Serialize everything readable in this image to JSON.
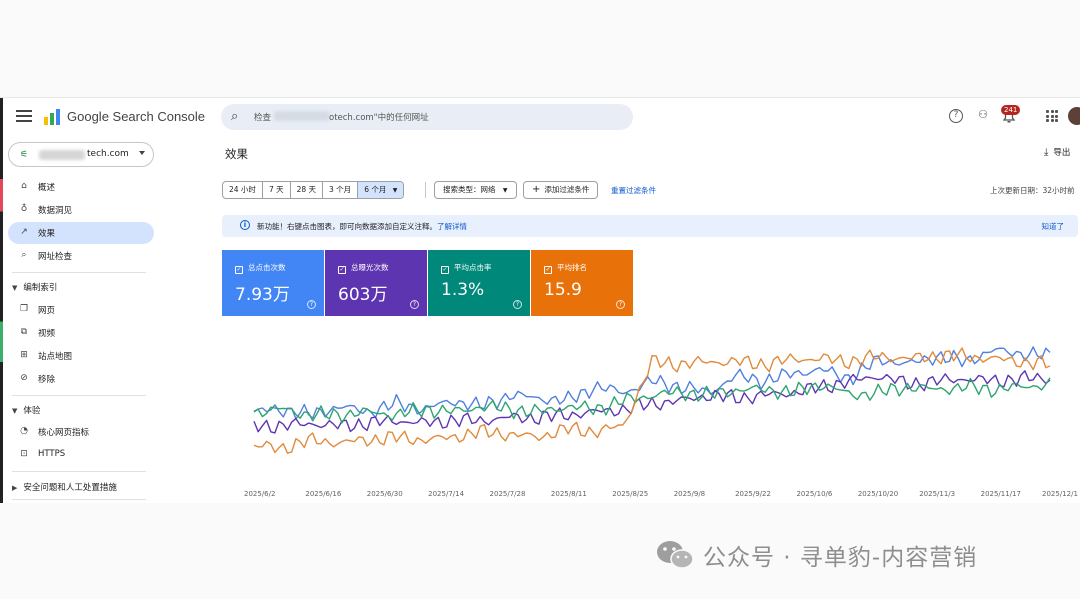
{
  "app": {
    "title": "Google Search Console"
  },
  "search": {
    "prefix": "检查",
    "suffix": "otech.com\"中的任何网址"
  },
  "header": {
    "notification_count": "241"
  },
  "property": {
    "name": "tech.com"
  },
  "sidebar": {
    "items": [
      {
        "label": "概述",
        "icon": "home-icon"
      },
      {
        "label": "数据洞见",
        "icon": "lightbulb-icon"
      },
      {
        "label": "效果",
        "icon": "trending-icon"
      },
      {
        "label": "网址检查",
        "icon": "search-icon"
      }
    ],
    "index_section": {
      "label": "编制索引",
      "items": [
        {
          "label": "网页",
          "icon": "pages-icon"
        },
        {
          "label": "视频",
          "icon": "video-icon"
        },
        {
          "label": "站点地图",
          "icon": "sitemap-icon"
        },
        {
          "label": "移除",
          "icon": "eye-off-icon"
        }
      ]
    },
    "experience_section": {
      "label": "体验",
      "items": [
        {
          "label": "核心网页指标",
          "icon": "gauge-icon"
        },
        {
          "label": "HTTPS",
          "icon": "lock-icon"
        }
      ]
    },
    "security_section": {
      "label": "安全问题和人工处置措施"
    }
  },
  "main": {
    "title": "效果",
    "export_label": "导出",
    "date_ranges": [
      "24 小时",
      "7 天",
      "28 天",
      "3 个月",
      "6 个月"
    ],
    "selected_range": "6 个月",
    "search_type_filter": "搜索类型：网络",
    "add_filter": "添加过滤条件",
    "reset_filters": "重置过滤条件",
    "last_updated": "上次更新日期：32小时前",
    "banner": {
      "text": "新功能！右键点击图表，即可向数据添加自定义注释。",
      "link": "了解详情",
      "dismiss": "知道了"
    },
    "metrics": [
      {
        "label": "总点击次数",
        "value": "7.93万",
        "color": "#4285f4"
      },
      {
        "label": "总曝光次数",
        "value": "603万",
        "color": "#5e35b1"
      },
      {
        "label": "平均点击率",
        "value": "1.3%",
        "color": "#00897b"
      },
      {
        "label": "平均排名",
        "value": "15.9",
        "color": "#e8710a"
      }
    ]
  },
  "chart_data": {
    "type": "line",
    "x_labels": [
      "2025/6/2",
      "2025/6/16",
      "2025/6/30",
      "2025/7/14",
      "2025/7/28",
      "2025/8/11",
      "2025/8/25",
      "2025/9/8",
      "2025/9/22",
      "2025/10/6",
      "2025/10/20",
      "2025/11/3",
      "2025/11/17",
      "2025/12/1"
    ],
    "series": [
      {
        "name": "总点击次数",
        "color": "#4f7fdf",
        "values": [
          40,
          42,
          38,
          44,
          40,
          46,
          42,
          48,
          44,
          52,
          50,
          48,
          58,
          54,
          62,
          58,
          54,
          66,
          62,
          68,
          70,
          64,
          78,
          74,
          80,
          76,
          84,
          82,
          80
        ]
      },
      {
        "name": "总曝光次数",
        "color": "#5e35b1",
        "values": [
          30,
          30,
          32,
          30,
          32,
          34,
          32,
          34,
          34,
          36,
          36,
          38,
          40,
          42,
          46,
          48,
          52,
          50,
          52,
          54,
          58,
          62,
          66,
          60,
          62,
          64,
          62,
          64,
          64
        ]
      },
      {
        "name": "平均点击率",
        "color": "#2ea56e",
        "values": [
          40,
          42,
          38,
          38,
          40,
          38,
          42,
          40,
          44,
          42,
          40,
          44,
          42,
          48,
          52,
          54,
          52,
          56,
          56,
          54,
          60,
          52,
          54,
          58,
          56,
          58,
          56,
          58,
          60
        ]
      },
      {
        "name": "平均排名",
        "color": "#e08a3c",
        "values": [
          16,
          14,
          20,
          18,
          20,
          22,
          20,
          22,
          26,
          24,
          22,
          28,
          26,
          30,
          76,
          74,
          76,
          76,
          74,
          78,
          78,
          76,
          80,
          78,
          80,
          80,
          78,
          76,
          74
        ]
      }
    ]
  },
  "watermark": {
    "text": "公众号 · 寻单豹-内容营销"
  }
}
